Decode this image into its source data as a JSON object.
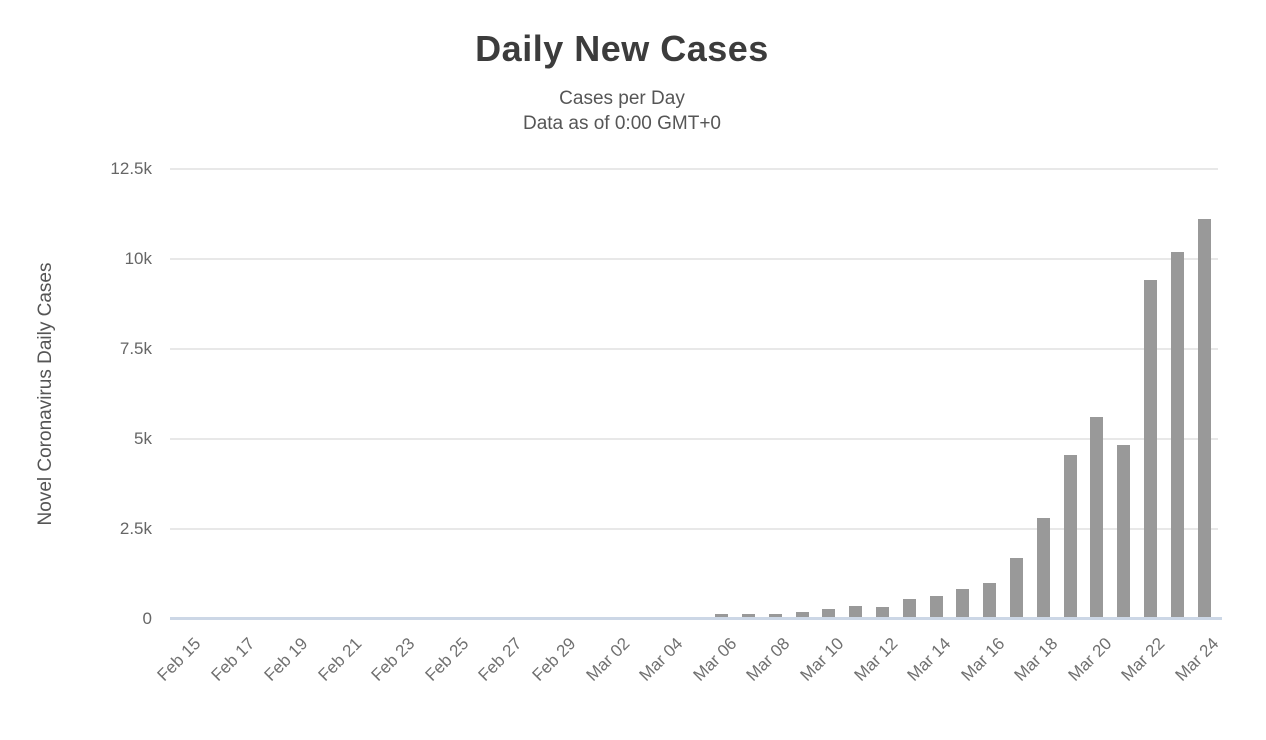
{
  "header": {
    "title": "Daily New Cases",
    "subtitle_line1": "Cases per Day",
    "subtitle_line2": "Data as of 0:00 GMT+0"
  },
  "chart_data": {
    "type": "bar",
    "title": "Daily New Cases",
    "subtitle": "Cases per Day",
    "note": "Data as of 0:00 GMT+0",
    "xlabel": "",
    "ylabel": "Novel Coronavirus Daily Cases",
    "ylim": [
      0,
      12500
    ],
    "ytick_values": [
      0,
      2500,
      5000,
      7500,
      10000,
      12500
    ],
    "ytick_labels": [
      "0",
      "2.5k",
      "5k",
      "7.5k",
      "10k",
      "12.5k"
    ],
    "xtick_label_every": 2,
    "grid": true,
    "legend": false,
    "categories": [
      "Feb 15",
      "Feb 16",
      "Feb 17",
      "Feb 18",
      "Feb 19",
      "Feb 20",
      "Feb 21",
      "Feb 22",
      "Feb 23",
      "Feb 24",
      "Feb 25",
      "Feb 26",
      "Feb 27",
      "Feb 28",
      "Feb 29",
      "Mar 01",
      "Mar 02",
      "Mar 03",
      "Mar 04",
      "Mar 05",
      "Mar 06",
      "Mar 07",
      "Mar 08",
      "Mar 09",
      "Mar 10",
      "Mar 11",
      "Mar 12",
      "Mar 13",
      "Mar 14",
      "Mar 15",
      "Mar 16",
      "Mar 17",
      "Mar 18",
      "Mar 19",
      "Mar 20",
      "Mar 21",
      "Mar 22",
      "Mar 23",
      "Mar 24"
    ],
    "values": [
      0,
      0,
      0,
      0,
      0,
      0,
      0,
      0,
      0,
      0,
      0,
      0,
      0,
      0,
      0,
      0,
      0,
      0,
      0,
      0,
      80,
      80,
      70,
      150,
      230,
      300,
      280,
      510,
      575,
      785,
      955,
      1650,
      2750,
      4500,
      5550,
      4780,
      9350,
      10150,
      11050
    ]
  },
  "colors": {
    "bar": "#999999",
    "gridline": "#e8e8e8",
    "zero_axis": "#ccd7e6",
    "title": "#3c3c3c",
    "subtitle": "#565656",
    "tick_label": "#6e6e6e"
  }
}
